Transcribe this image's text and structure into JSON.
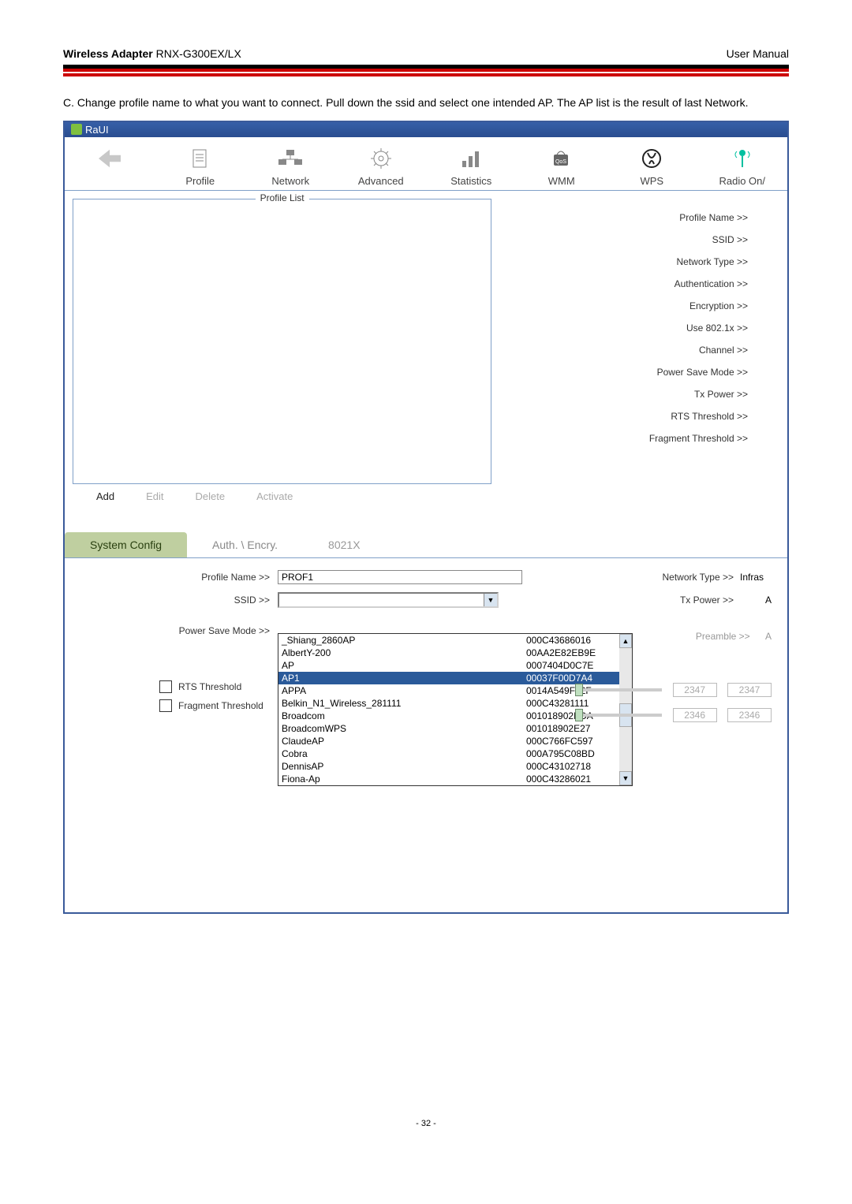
{
  "header": {
    "product_bold": "Wireless Adapter",
    "product_model": "RNX-G300EX/LX",
    "doc_title": "User Manual"
  },
  "instruction": "C. Change profile name to what you want to connect. Pull down the ssid and select one intended AP. The AP list is the result of last Network.",
  "app": {
    "title": "RaUI",
    "toolbar": {
      "profile": "Profile",
      "network": "Network",
      "advanced": "Advanced",
      "statistics": "Statistics",
      "wmm": "WMM",
      "wps": "WPS",
      "radio": "Radio On/"
    },
    "profile_list_legend": "Profile List",
    "buttons": {
      "add": "Add",
      "edit": "Edit",
      "delete": "Delete",
      "activate": "Activate"
    },
    "details": {
      "profile_name": "Profile Name >>",
      "ssid": "SSID >>",
      "network_type": "Network Type >>",
      "authentication": "Authentication >>",
      "encryption": "Encryption >>",
      "use8021x": "Use 802.1x >>",
      "channel": "Channel >>",
      "power_save_mode": "Power Save Mode >>",
      "tx_power": "Tx Power >>",
      "rts_threshold": "RTS Threshold >>",
      "fragment_threshold": "Fragment Threshold >>"
    },
    "tabs": {
      "system_config": "System Config",
      "auth_encry": "Auth. \\ Encry.",
      "x8021": "8021X"
    },
    "config": {
      "profile_name_label": "Profile Name >>",
      "profile_name_value": "PROF1",
      "ssid_label": "SSID >>",
      "ssid_value": "",
      "power_save_label": "Power Save Mode >>",
      "rts_label": "RTS Threshold",
      "frag_label": "Fragment Threshold",
      "network_type_label": "Network Type >>",
      "network_type_value": "Infras",
      "tx_power_label": "Tx Power >>",
      "tx_power_value": "A",
      "preamble_label": "Preamble >>",
      "preamble_value": "A",
      "rts_val1": "2347",
      "rts_val2": "2347",
      "frag_val1": "2346",
      "frag_val2": "2346",
      "ap_list": [
        {
          "name": "_Shiang_2860AP",
          "mac": "000C43686016",
          "sel": false
        },
        {
          "name": "AlbertY-200",
          "mac": "00AA2E82EB9E",
          "sel": false
        },
        {
          "name": "AP",
          "mac": "0007404D0C7E",
          "sel": false
        },
        {
          "name": "AP1",
          "mac": "00037F00D7A4",
          "sel": true
        },
        {
          "name": "APPA",
          "mac": "0014A549F42F",
          "sel": false
        },
        {
          "name": "Belkin_N1_Wireless_281111",
          "mac": "000C43281111",
          "sel": false
        },
        {
          "name": "Broadcom",
          "mac": "001018902EDA",
          "sel": false
        },
        {
          "name": "BroadcomWPS",
          "mac": "001018902E27",
          "sel": false
        },
        {
          "name": "ClaudeAP",
          "mac": "000C766FC597",
          "sel": false
        },
        {
          "name": "Cobra",
          "mac": "000A795C08BD",
          "sel": false
        },
        {
          "name": "DennisAP",
          "mac": "000C43102718",
          "sel": false
        },
        {
          "name": "Fiona-Ap",
          "mac": "000C43286021",
          "sel": false
        }
      ]
    }
  },
  "page_number": "- 32 -"
}
